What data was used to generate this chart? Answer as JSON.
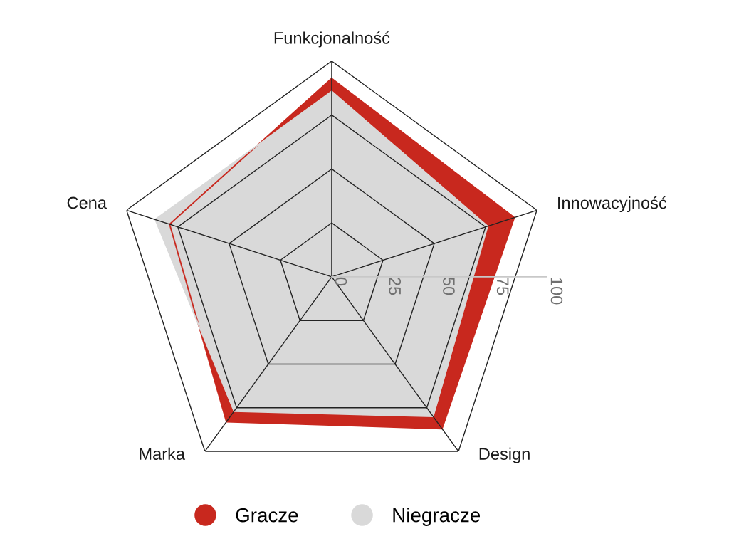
{
  "chart_data": {
    "type": "radar",
    "categories": [
      "Funkcjonalność",
      "Innowacyjność",
      "Design",
      "Marka",
      "Cena"
    ],
    "series": [
      {
        "name": "Gracze",
        "color": "#c8281e",
        "values": [
          92,
          89,
          87,
          83,
          79
        ]
      },
      {
        "name": "Niegracze",
        "color": "#d9d9d9",
        "values": [
          86,
          76,
          80,
          77,
          86
        ]
      }
    ],
    "ylim": [
      0,
      100
    ],
    "yticks": [
      0,
      25,
      50,
      75,
      100
    ],
    "grid": true,
    "legend": "bottom"
  }
}
